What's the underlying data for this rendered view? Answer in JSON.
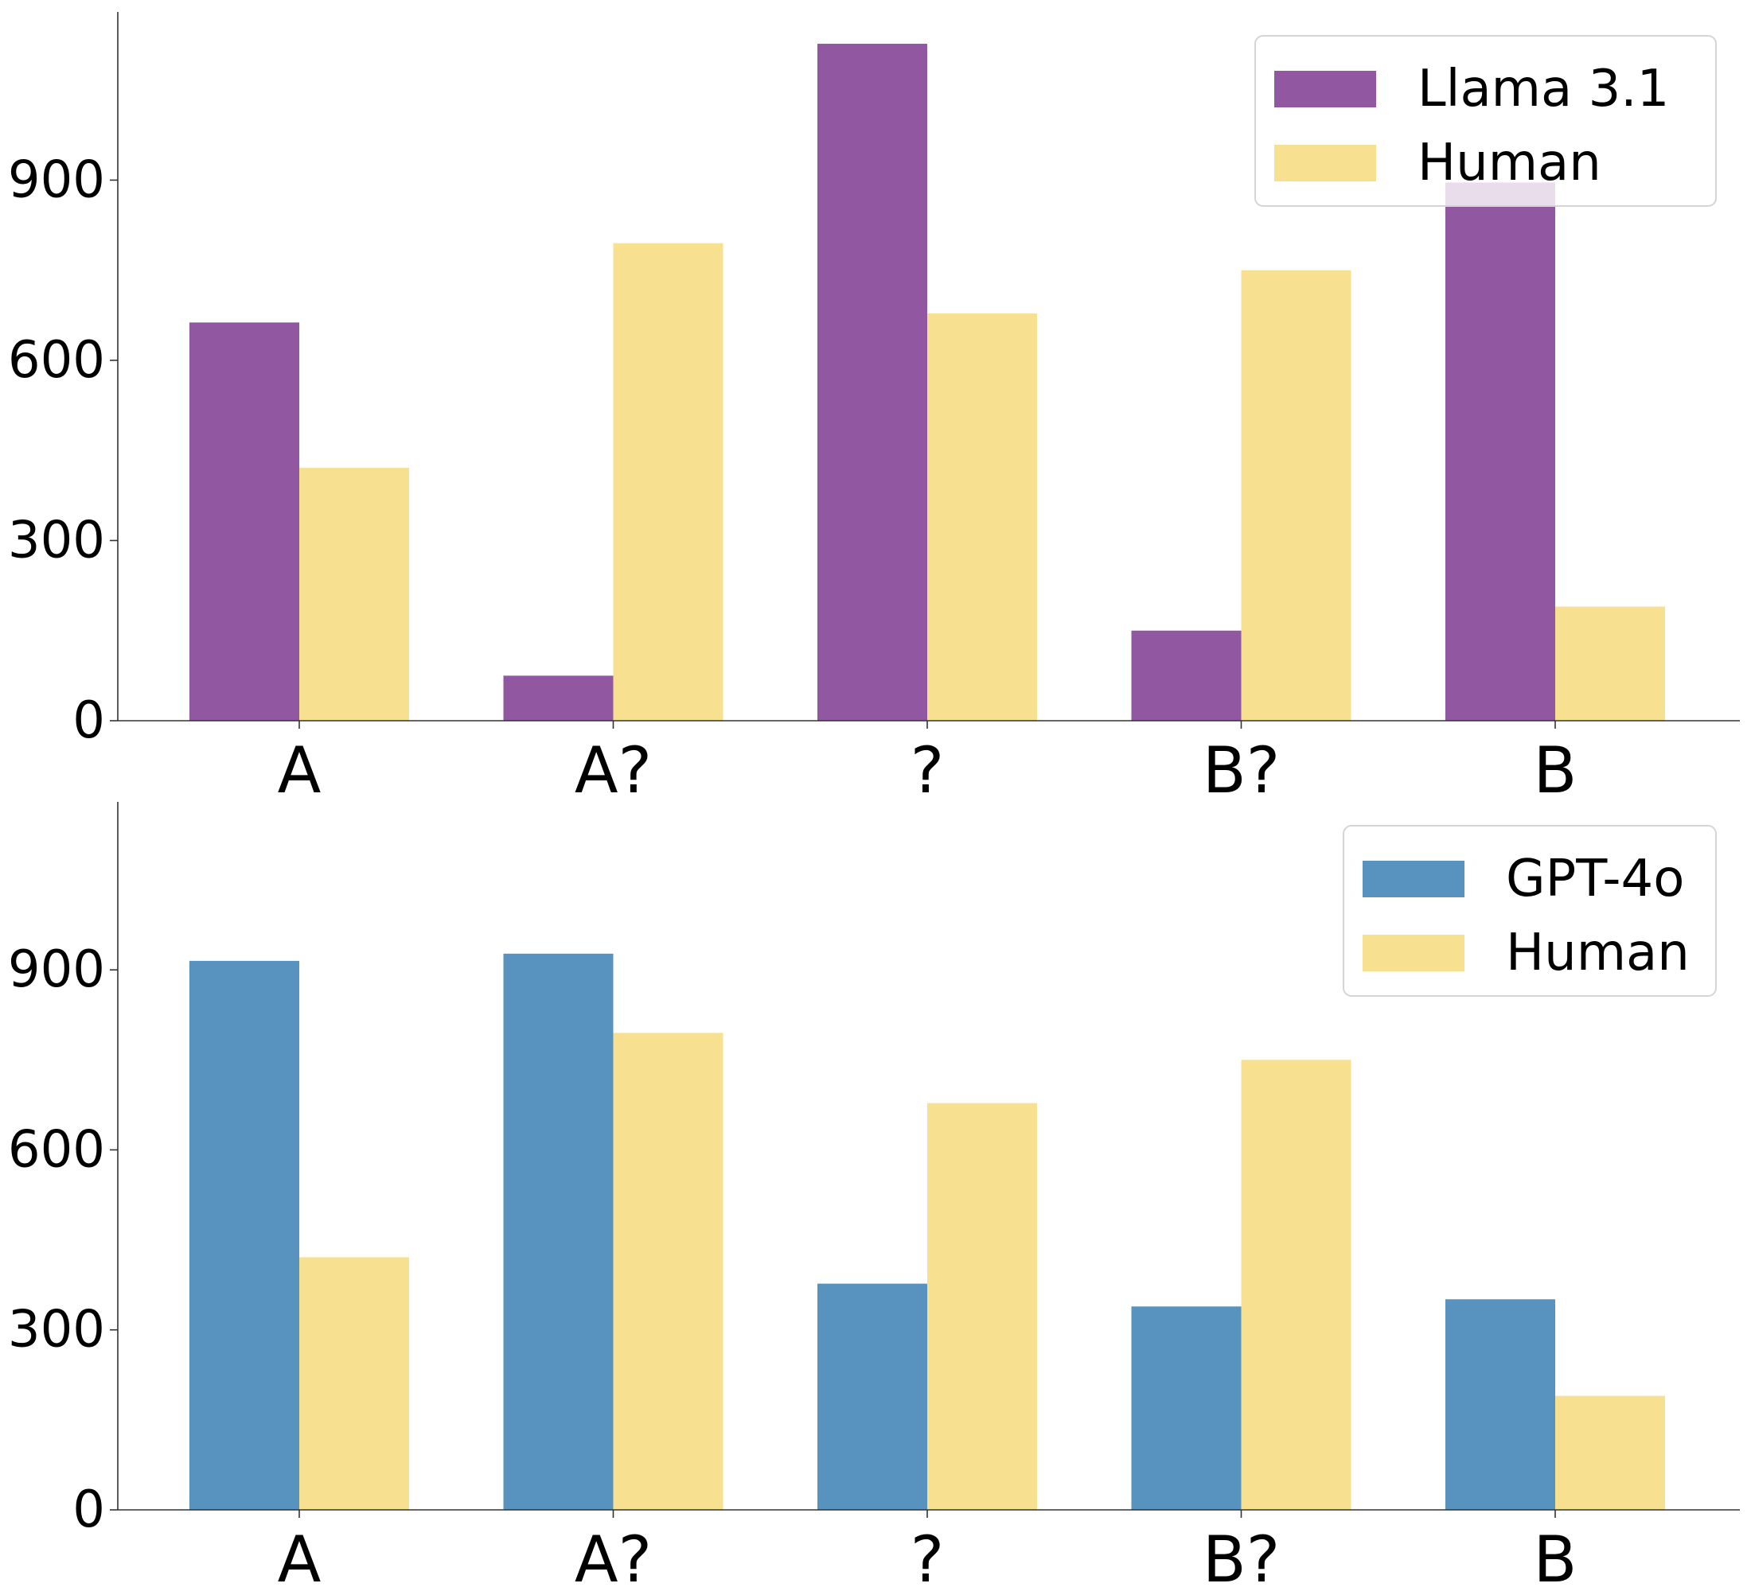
{
  "chart_data": [
    {
      "type": "bar",
      "categories": [
        "A",
        "A?",
        "?",
        "B?",
        "B"
      ],
      "series": [
        {
          "name": "Llama 3.1",
          "color": "#9158A1",
          "values": [
            663,
            75,
            1127,
            150,
            896
          ]
        },
        {
          "name": "Human",
          "color": "#F7E191",
          "values": [
            421,
            795,
            678,
            750,
            190
          ]
        }
      ],
      "yticks": [
        0,
        300,
        600,
        900
      ],
      "ylim": [
        0,
        1180
      ],
      "grid": false,
      "legend_position": "top-right"
    },
    {
      "type": "bar",
      "categories": [
        "A",
        "A?",
        "?",
        "B?",
        "B"
      ],
      "series": [
        {
          "name": "GPT-4o",
          "color": "#5893C0",
          "values": [
            915,
            927,
            377,
            339,
            351
          ]
        },
        {
          "name": "Human",
          "color": "#F7E191",
          "values": [
            421,
            795,
            678,
            750,
            190
          ]
        }
      ],
      "yticks": [
        0,
        300,
        600,
        900
      ],
      "ylim": [
        0,
        1180
      ],
      "grid": false,
      "legend_position": "top-right"
    }
  ]
}
